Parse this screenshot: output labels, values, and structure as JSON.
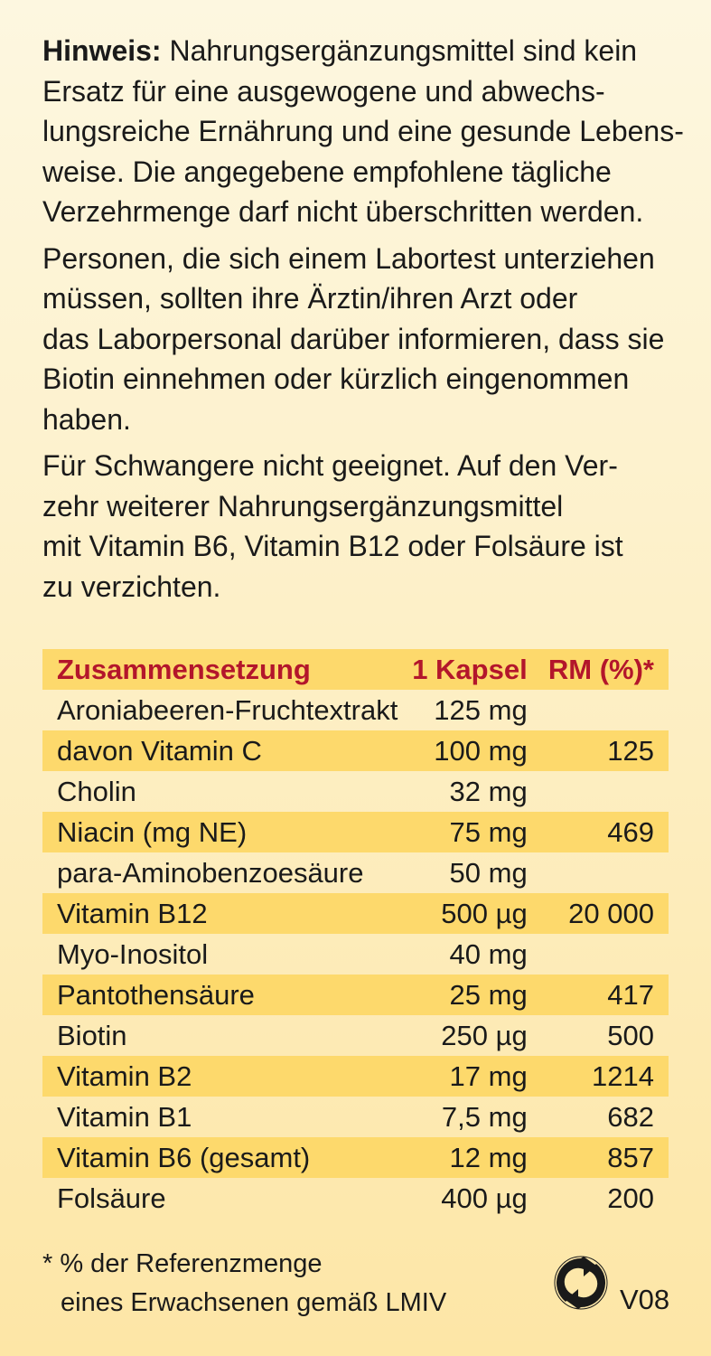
{
  "notice": {
    "label": "Hinweis:",
    "p1_lines": [
      " Nahrungsergänzungsmittel sind kein",
      "Ersatz für eine ausgewogene und abwechs-",
      "lungsreiche Ernährung und eine gesunde Lebens-",
      "weise. Die angegebene empfohlene tägliche",
      "Verzehrmenge darf nicht überschritten werden."
    ],
    "p2_lines": [
      "Personen, die sich einem Labortest unterziehen",
      "müssen, sollten ihre Ärztin/ihren Arzt oder",
      "das Laborpersonal darüber informieren, dass sie",
      "Biotin einnehmen oder kürzlich eingenommen",
      "haben."
    ],
    "p3_lines": [
      "Für Schwangere nicht geeignet. Auf den Ver-",
      "zehr weiterer Nahrungsergänzungsmittel",
      "mit Vitamin B6, Vitamin B12 oder Folsäure ist",
      "zu verzichten."
    ]
  },
  "table": {
    "headers": [
      "Zusammensetzung",
      "1 Kapsel",
      "RM (%)*"
    ],
    "rows": [
      [
        "Aroniabeeren-Fruchtextrakt",
        "125 mg",
        ""
      ],
      [
        "davon Vitamin C",
        "100 mg",
        "125"
      ],
      [
        "Cholin",
        "32 mg",
        ""
      ],
      [
        "Niacin (mg NE)",
        "75 mg",
        "469"
      ],
      [
        "para-Aminobenzoesäure",
        "50 mg",
        ""
      ],
      [
        "Vitamin B12",
        "500 µg",
        "20 000"
      ],
      [
        "Myo-Inositol",
        "40 mg",
        ""
      ],
      [
        "Pantothensäure",
        "25 mg",
        "417"
      ],
      [
        "Biotin",
        "250 µg",
        "500"
      ],
      [
        "Vitamin B2",
        "17 mg",
        "1214"
      ],
      [
        "Vitamin B1",
        "7,5 mg",
        "682"
      ],
      [
        "Vitamin B6 (gesamt)",
        "12 mg",
        "857"
      ],
      [
        "Folsäure",
        "400 µg",
        "200"
      ]
    ]
  },
  "footnote": [
    "* % der Referenzmenge",
    "eines Erwachsenen gemäß LMIV"
  ],
  "version": "V08",
  "logo_icon": "green-dot-recycling-icon",
  "colors": {
    "header_text": "#b3162b",
    "row_highlight": "#fdd96c"
  }
}
